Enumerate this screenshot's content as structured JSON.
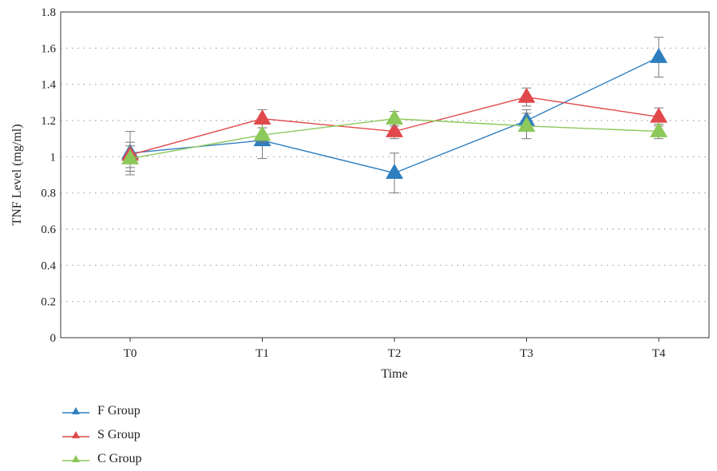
{
  "chart_data": {
    "type": "line",
    "xlabel": "Time",
    "ylabel": "TNF Level (mg/ml)",
    "categories": [
      "T0",
      "T1",
      "T2",
      "T3",
      "T4"
    ],
    "ylim": [
      0,
      1.8
    ],
    "yticks": [
      "0",
      "0.2",
      "0.4",
      "0.6",
      "0.8",
      "1",
      "1.2",
      "1.4",
      "1.6",
      "1.8"
    ],
    "grid": "horizontal dotted",
    "legend_position": "bottom-left",
    "marker": "triangle",
    "series": [
      {
        "name": "F Group",
        "color": "#2e7ebf",
        "values": [
          1.02,
          1.09,
          0.91,
          1.2,
          1.55
        ],
        "error": [
          0.12,
          0.1,
          0.11,
          0.06,
          0.11
        ]
      },
      {
        "name": "S Group",
        "color": "#e0484b",
        "values": [
          1.01,
          1.21,
          1.14,
          1.33,
          1.22
        ],
        "error": [
          0.07,
          0.05,
          0.04,
          0.05,
          0.05
        ]
      },
      {
        "name": "C Group",
        "color": "#8dc85a",
        "values": [
          0.99,
          1.12,
          1.21,
          1.17,
          1.14
        ],
        "error": [
          0.07,
          0.04,
          0.04,
          0.07,
          0.04
        ]
      }
    ]
  }
}
